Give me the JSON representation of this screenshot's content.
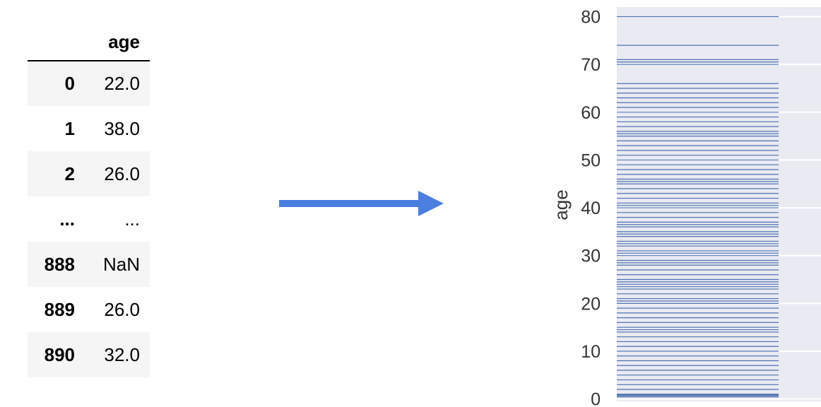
{
  "table": {
    "header": {
      "index": "",
      "column": "age"
    },
    "rows": [
      {
        "index": "0",
        "value": "22.0"
      },
      {
        "index": "1",
        "value": "38.0"
      },
      {
        "index": "2",
        "value": "26.0"
      },
      {
        "index": "...",
        "value": "..."
      },
      {
        "index": "888",
        "value": "NaN"
      },
      {
        "index": "889",
        "value": "26.0"
      },
      {
        "index": "890",
        "value": "32.0"
      }
    ]
  },
  "arrow": {
    "color": "#4a7fe0"
  },
  "chart_data": {
    "type": "rug",
    "orientation": "vertical",
    "title": "",
    "xlabel": "",
    "ylabel": "age",
    "ylim": [
      -0.5,
      82
    ],
    "yticks": [
      0,
      10,
      20,
      30,
      40,
      50,
      60,
      70,
      80
    ],
    "grid": true,
    "background": "#eaeaf2",
    "line_color": "#4c72b0",
    "values": [
      0.42,
      0.67,
      0.75,
      0.83,
      0.92,
      1,
      2,
      3,
      4,
      5,
      6,
      7,
      8,
      9,
      10,
      11,
      12,
      13,
      14,
      14.5,
      15,
      16,
      17,
      18,
      19,
      20,
      20.5,
      21,
      22,
      23,
      23.5,
      24,
      24.5,
      25,
      26,
      27,
      28,
      28.5,
      29,
      30,
      30.5,
      31,
      32,
      32.5,
      33,
      34,
      34.5,
      35,
      36,
      36.5,
      37,
      38,
      39,
      40,
      40.5,
      41,
      42,
      43,
      44,
      45,
      45.5,
      46,
      47,
      48,
      49,
      50,
      51,
      52,
      53,
      54,
      55,
      55.5,
      56,
      57,
      58,
      59,
      60,
      61,
      62,
      63,
      64,
      65,
      66,
      70,
      70.5,
      71,
      74,
      80
    ]
  }
}
